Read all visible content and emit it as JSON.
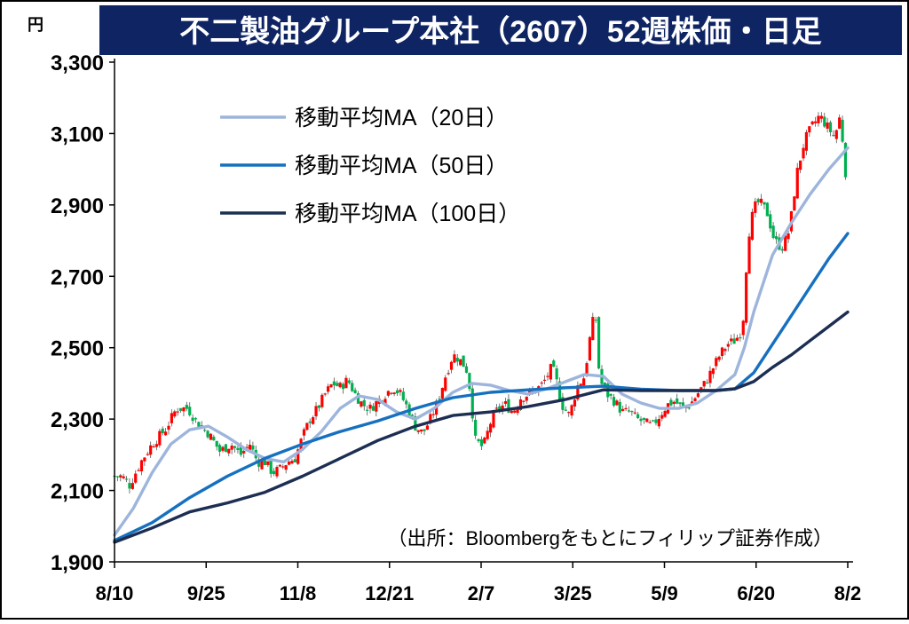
{
  "title": "不二製油グループ本社（2607）52週株価・日足",
  "unit": "円",
  "source": "（出所：Bloombergをもとにフィリップ証券作成）",
  "colors": {
    "title_bg": "#0f2463",
    "title_text": "#ffffff",
    "up": "#ff0000",
    "down": "#00b050",
    "ma20": "#9db5dc",
    "ma50": "#1670c0",
    "ma100": "#1c2e52",
    "axis": "#000000"
  },
  "chart_data": {
    "type": "line",
    "title": "不二製油グループ本社（2607）52週株価・日足",
    "ylabel": "円",
    "ylim": [
      1900,
      3300
    ],
    "yticks": [
      "1,900",
      "2,100",
      "2,300",
      "2,500",
      "2,700",
      "2,900",
      "3,100",
      "3,300"
    ],
    "ytick_values": [
      1900,
      2100,
      2300,
      2500,
      2700,
      2900,
      3100,
      3300
    ],
    "xticks": [
      "8/10",
      "9/25",
      "11/8",
      "12/21",
      "2/7",
      "3/25",
      "5/9",
      "6/20",
      "8/2"
    ],
    "grid": false,
    "legend_position": "top-left",
    "candle_close_path": [
      [
        0,
        2140
      ],
      [
        4,
        2140
      ],
      [
        8,
        2115
      ],
      [
        14,
        2180
      ],
      [
        20,
        2230
      ],
      [
        27,
        2270
      ],
      [
        33,
        2330
      ],
      [
        39,
        2330
      ],
      [
        44,
        2290
      ],
      [
        50,
        2260
      ],
      [
        56,
        2210
      ],
      [
        62,
        2230
      ],
      [
        67,
        2200
      ],
      [
        72,
        2230
      ],
      [
        76,
        2180
      ],
      [
        80,
        2180
      ],
      [
        84,
        2150
      ],
      [
        88,
        2160
      ],
      [
        92,
        2180
      ],
      [
        96,
        2190
      ],
      [
        100,
        2250
      ],
      [
        104,
        2300
      ],
      [
        108,
        2330
      ],
      [
        112,
        2370
      ],
      [
        116,
        2400
      ],
      [
        120,
        2390
      ],
      [
        124,
        2410
      ],
      [
        128,
        2370
      ],
      [
        132,
        2340
      ],
      [
        136,
        2330
      ],
      [
        140,
        2350
      ],
      [
        144,
        2370
      ],
      [
        148,
        2390
      ],
      [
        152,
        2370
      ],
      [
        156,
        2330
      ],
      [
        160,
        2280
      ],
      [
        164,
        2260
      ],
      [
        168,
        2300
      ],
      [
        172,
        2350
      ],
      [
        176,
        2420
      ],
      [
        180,
        2480
      ],
      [
        183,
        2470
      ],
      [
        186,
        2450
      ],
      [
        188,
        2430
      ],
      [
        192,
        2240
      ],
      [
        196,
        2220
      ],
      [
        200,
        2290
      ],
      [
        204,
        2330
      ],
      [
        208,
        2340
      ],
      [
        212,
        2320
      ],
      [
        216,
        2360
      ],
      [
        220,
        2370
      ],
      [
        224,
        2380
      ],
      [
        228,
        2400
      ],
      [
        232,
        2440
      ],
      [
        234,
        2430
      ],
      [
        238,
        2340
      ],
      [
        242,
        2310
      ],
      [
        246,
        2390
      ],
      [
        250,
        2420
      ],
      [
        254,
        2570
      ],
      [
        256,
        2580
      ],
      [
        258,
        2410
      ],
      [
        262,
        2370
      ],
      [
        266,
        2350
      ],
      [
        270,
        2320
      ],
      [
        274,
        2320
      ],
      [
        278,
        2300
      ],
      [
        282,
        2290
      ],
      [
        286,
        2280
      ],
      [
        290,
        2310
      ],
      [
        294,
        2340
      ],
      [
        298,
        2350
      ],
      [
        302,
        2330
      ],
      [
        306,
        2340
      ],
      [
        310,
        2370
      ],
      [
        314,
        2400
      ],
      [
        318,
        2440
      ],
      [
        322,
        2480
      ],
      [
        326,
        2510
      ],
      [
        330,
        2520
      ],
      [
        334,
        2550
      ],
      [
        337,
        2810
      ],
      [
        340,
        2890
      ],
      [
        343,
        2910
      ],
      [
        347,
        2880
      ],
      [
        351,
        2800
      ],
      [
        355,
        2780
      ],
      [
        359,
        2830
      ],
      [
        363,
        2990
      ],
      [
        367,
        3080
      ],
      [
        371,
        3120
      ],
      [
        375,
        3150
      ],
      [
        379,
        3120
      ],
      [
        383,
        3090
      ],
      [
        386,
        3150
      ],
      [
        388,
        3040
      ],
      [
        390,
        2920
      ]
    ],
    "series": [
      {
        "name": "移動平均MA（20日）",
        "color": "#9db5dc",
        "x": [
          0,
          10,
          20,
          30,
          40,
          50,
          60,
          70,
          80,
          90,
          100,
          110,
          120,
          130,
          140,
          150,
          160,
          170,
          180,
          190,
          200,
          210,
          220,
          230,
          240,
          250,
          260,
          270,
          280,
          290,
          300,
          310,
          320,
          330,
          335,
          340,
          350,
          360,
          370,
          380,
          390
        ],
        "values": [
          1975,
          2050,
          2150,
          2230,
          2270,
          2280,
          2250,
          2215,
          2190,
          2180,
          2215,
          2265,
          2330,
          2365,
          2355,
          2320,
          2300,
          2330,
          2375,
          2400,
          2395,
          2380,
          2370,
          2385,
          2405,
          2425,
          2420,
          2370,
          2345,
          2330,
          2330,
          2345,
          2380,
          2425,
          2500,
          2600,
          2760,
          2850,
          2930,
          3000,
          3060
        ]
      },
      {
        "name": "移動平均MA（50日）",
        "color": "#1670c0",
        "x": [
          0,
          20,
          40,
          60,
          80,
          100,
          120,
          140,
          160,
          180,
          200,
          220,
          240,
          260,
          280,
          300,
          320,
          330,
          340,
          350,
          360,
          370,
          380,
          390
        ],
        "values": [
          1960,
          2010,
          2080,
          2140,
          2190,
          2230,
          2265,
          2295,
          2330,
          2360,
          2375,
          2382,
          2388,
          2392,
          2384,
          2380,
          2380,
          2385,
          2430,
          2510,
          2590,
          2670,
          2750,
          2820
        ]
      },
      {
        "name": "移動平均MA（100日）",
        "color": "#1c2e52",
        "x": [
          0,
          20,
          40,
          60,
          80,
          100,
          120,
          140,
          160,
          180,
          200,
          220,
          240,
          260,
          280,
          300,
          320,
          330,
          340,
          350,
          360,
          370,
          380,
          390
        ],
        "values": [
          1955,
          1995,
          2040,
          2065,
          2095,
          2140,
          2190,
          2240,
          2280,
          2310,
          2320,
          2335,
          2355,
          2382,
          2380,
          2380,
          2380,
          2385,
          2405,
          2445,
          2480,
          2520,
          2560,
          2600
        ]
      }
    ]
  }
}
